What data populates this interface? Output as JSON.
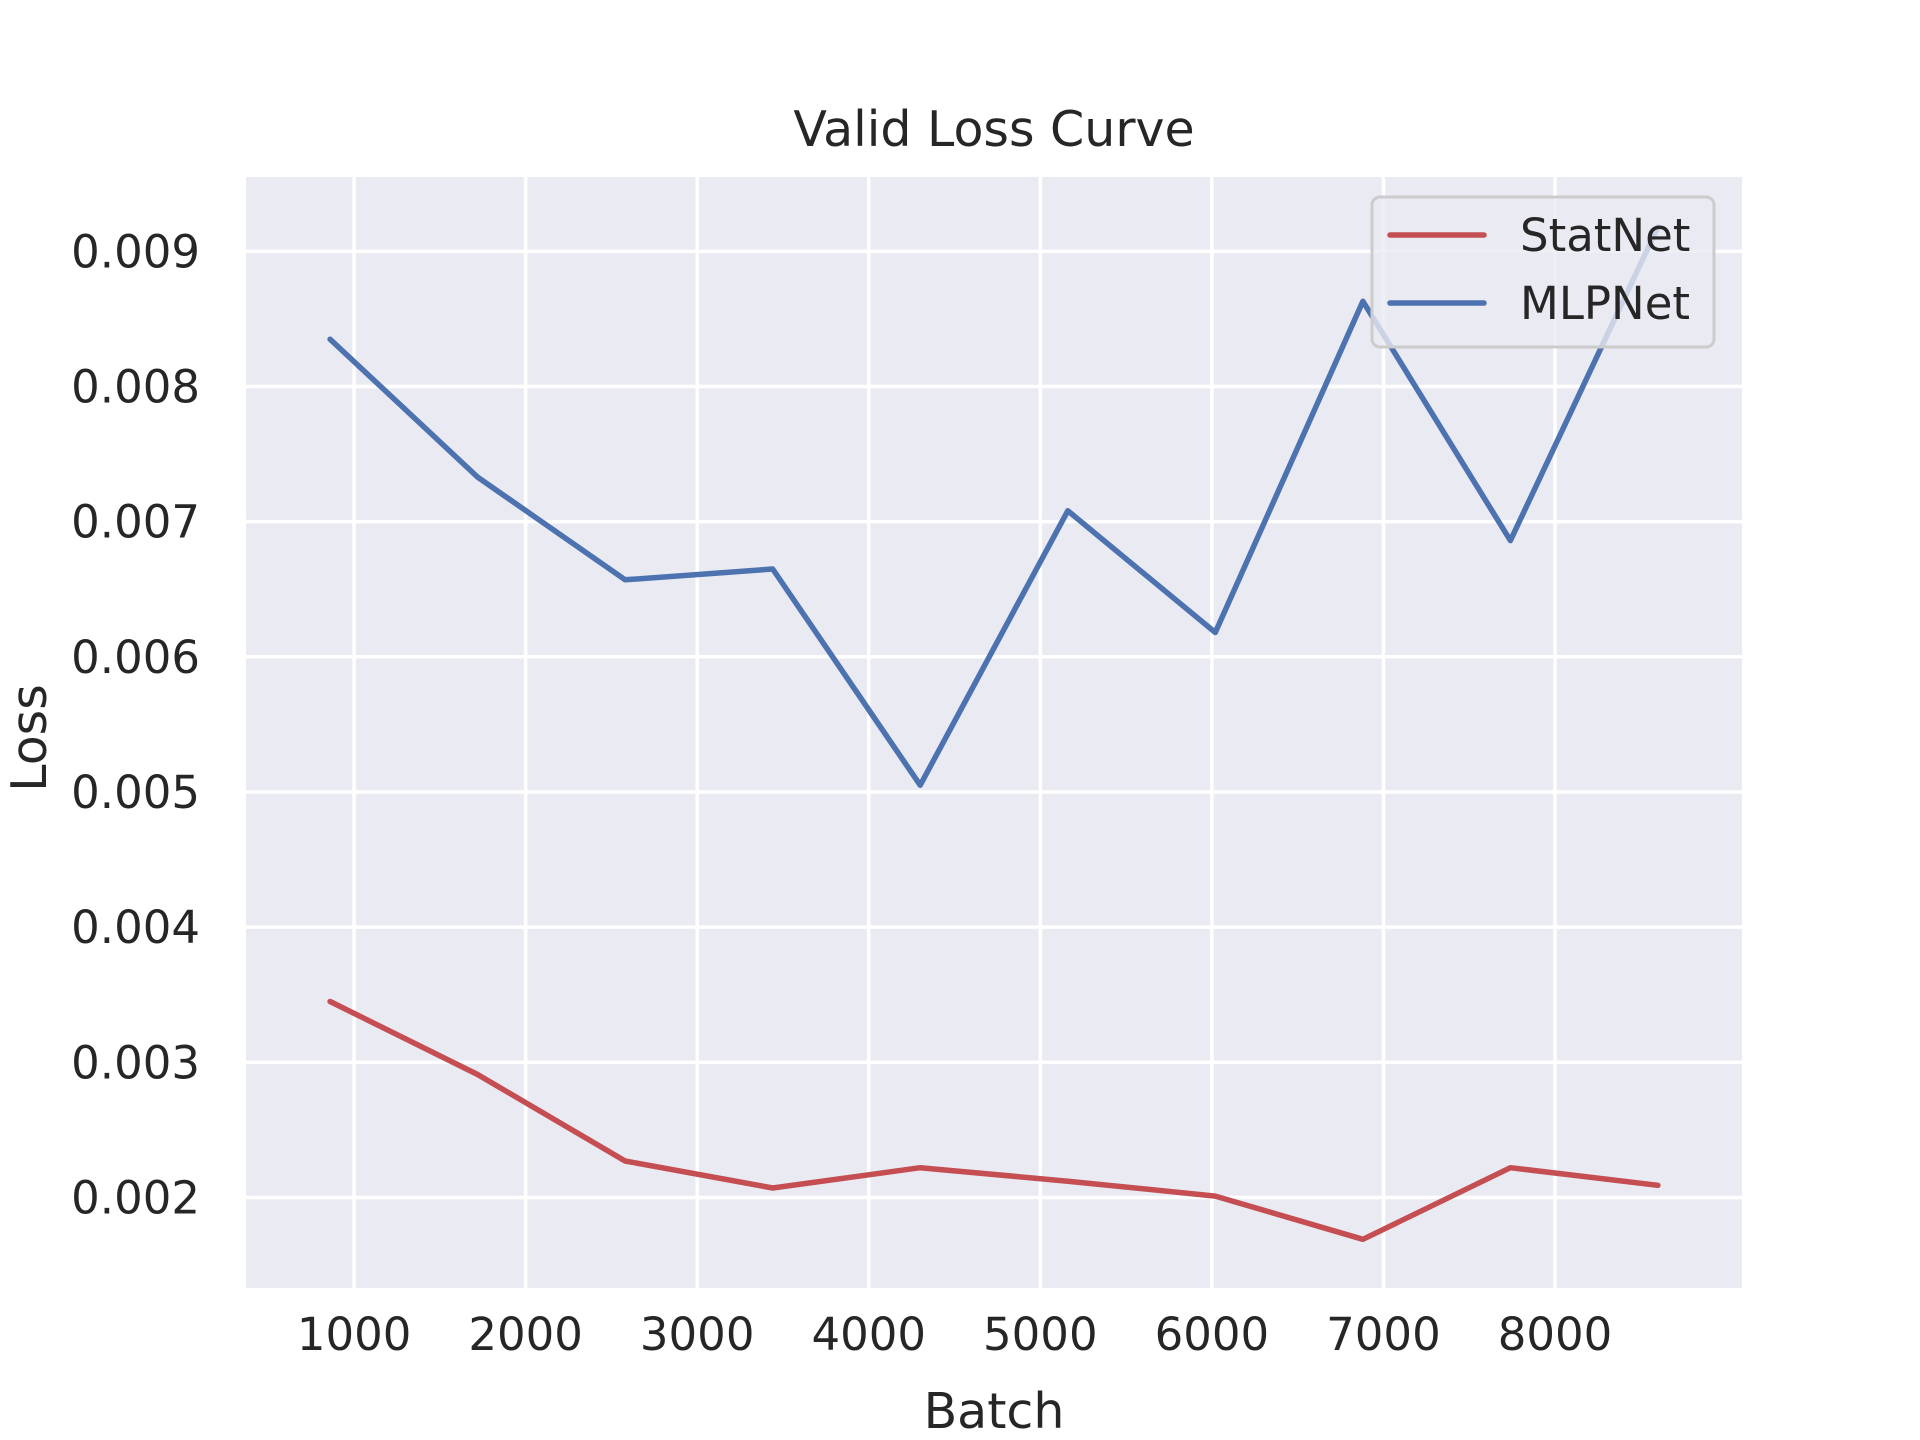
{
  "chart_data": {
    "type": "line",
    "title": "Valid Loss Curve",
    "xlabel": "Batch",
    "ylabel": "Loss",
    "xlim": [
      370,
      9090
    ],
    "ylim": [
      0.00133,
      0.00955
    ],
    "x_ticks": [
      1000,
      2000,
      3000,
      4000,
      5000,
      6000,
      7000,
      8000
    ],
    "x_tick_labels": [
      "1000",
      "2000",
      "3000",
      "4000",
      "5000",
      "6000",
      "7000",
      "8000"
    ],
    "y_ticks": [
      0.002,
      0.003,
      0.004,
      0.005,
      0.006,
      0.007,
      0.008,
      0.009
    ],
    "y_tick_labels": [
      "0.002",
      "0.003",
      "0.004",
      "0.005",
      "0.006",
      "0.007",
      "0.008",
      "0.009"
    ],
    "grid": true,
    "legend_position": "top-right",
    "x": [
      860,
      1720,
      2580,
      3440,
      4300,
      5160,
      6020,
      6880,
      7740,
      8600
    ],
    "series": [
      {
        "name": "StatNet",
        "color": "#c44e52",
        "values": [
          0.00345,
          0.00291,
          0.00227,
          0.00207,
          0.00222,
          0.00212,
          0.00201,
          0.00169,
          0.00222,
          0.00209
        ]
      },
      {
        "name": "MLPNet",
        "color": "#4c72b0",
        "values": [
          0.00835,
          0.00733,
          0.00657,
          0.00665,
          0.00505,
          0.00708,
          0.00618,
          0.00863,
          0.00686,
          0.00918
        ]
      }
    ]
  }
}
